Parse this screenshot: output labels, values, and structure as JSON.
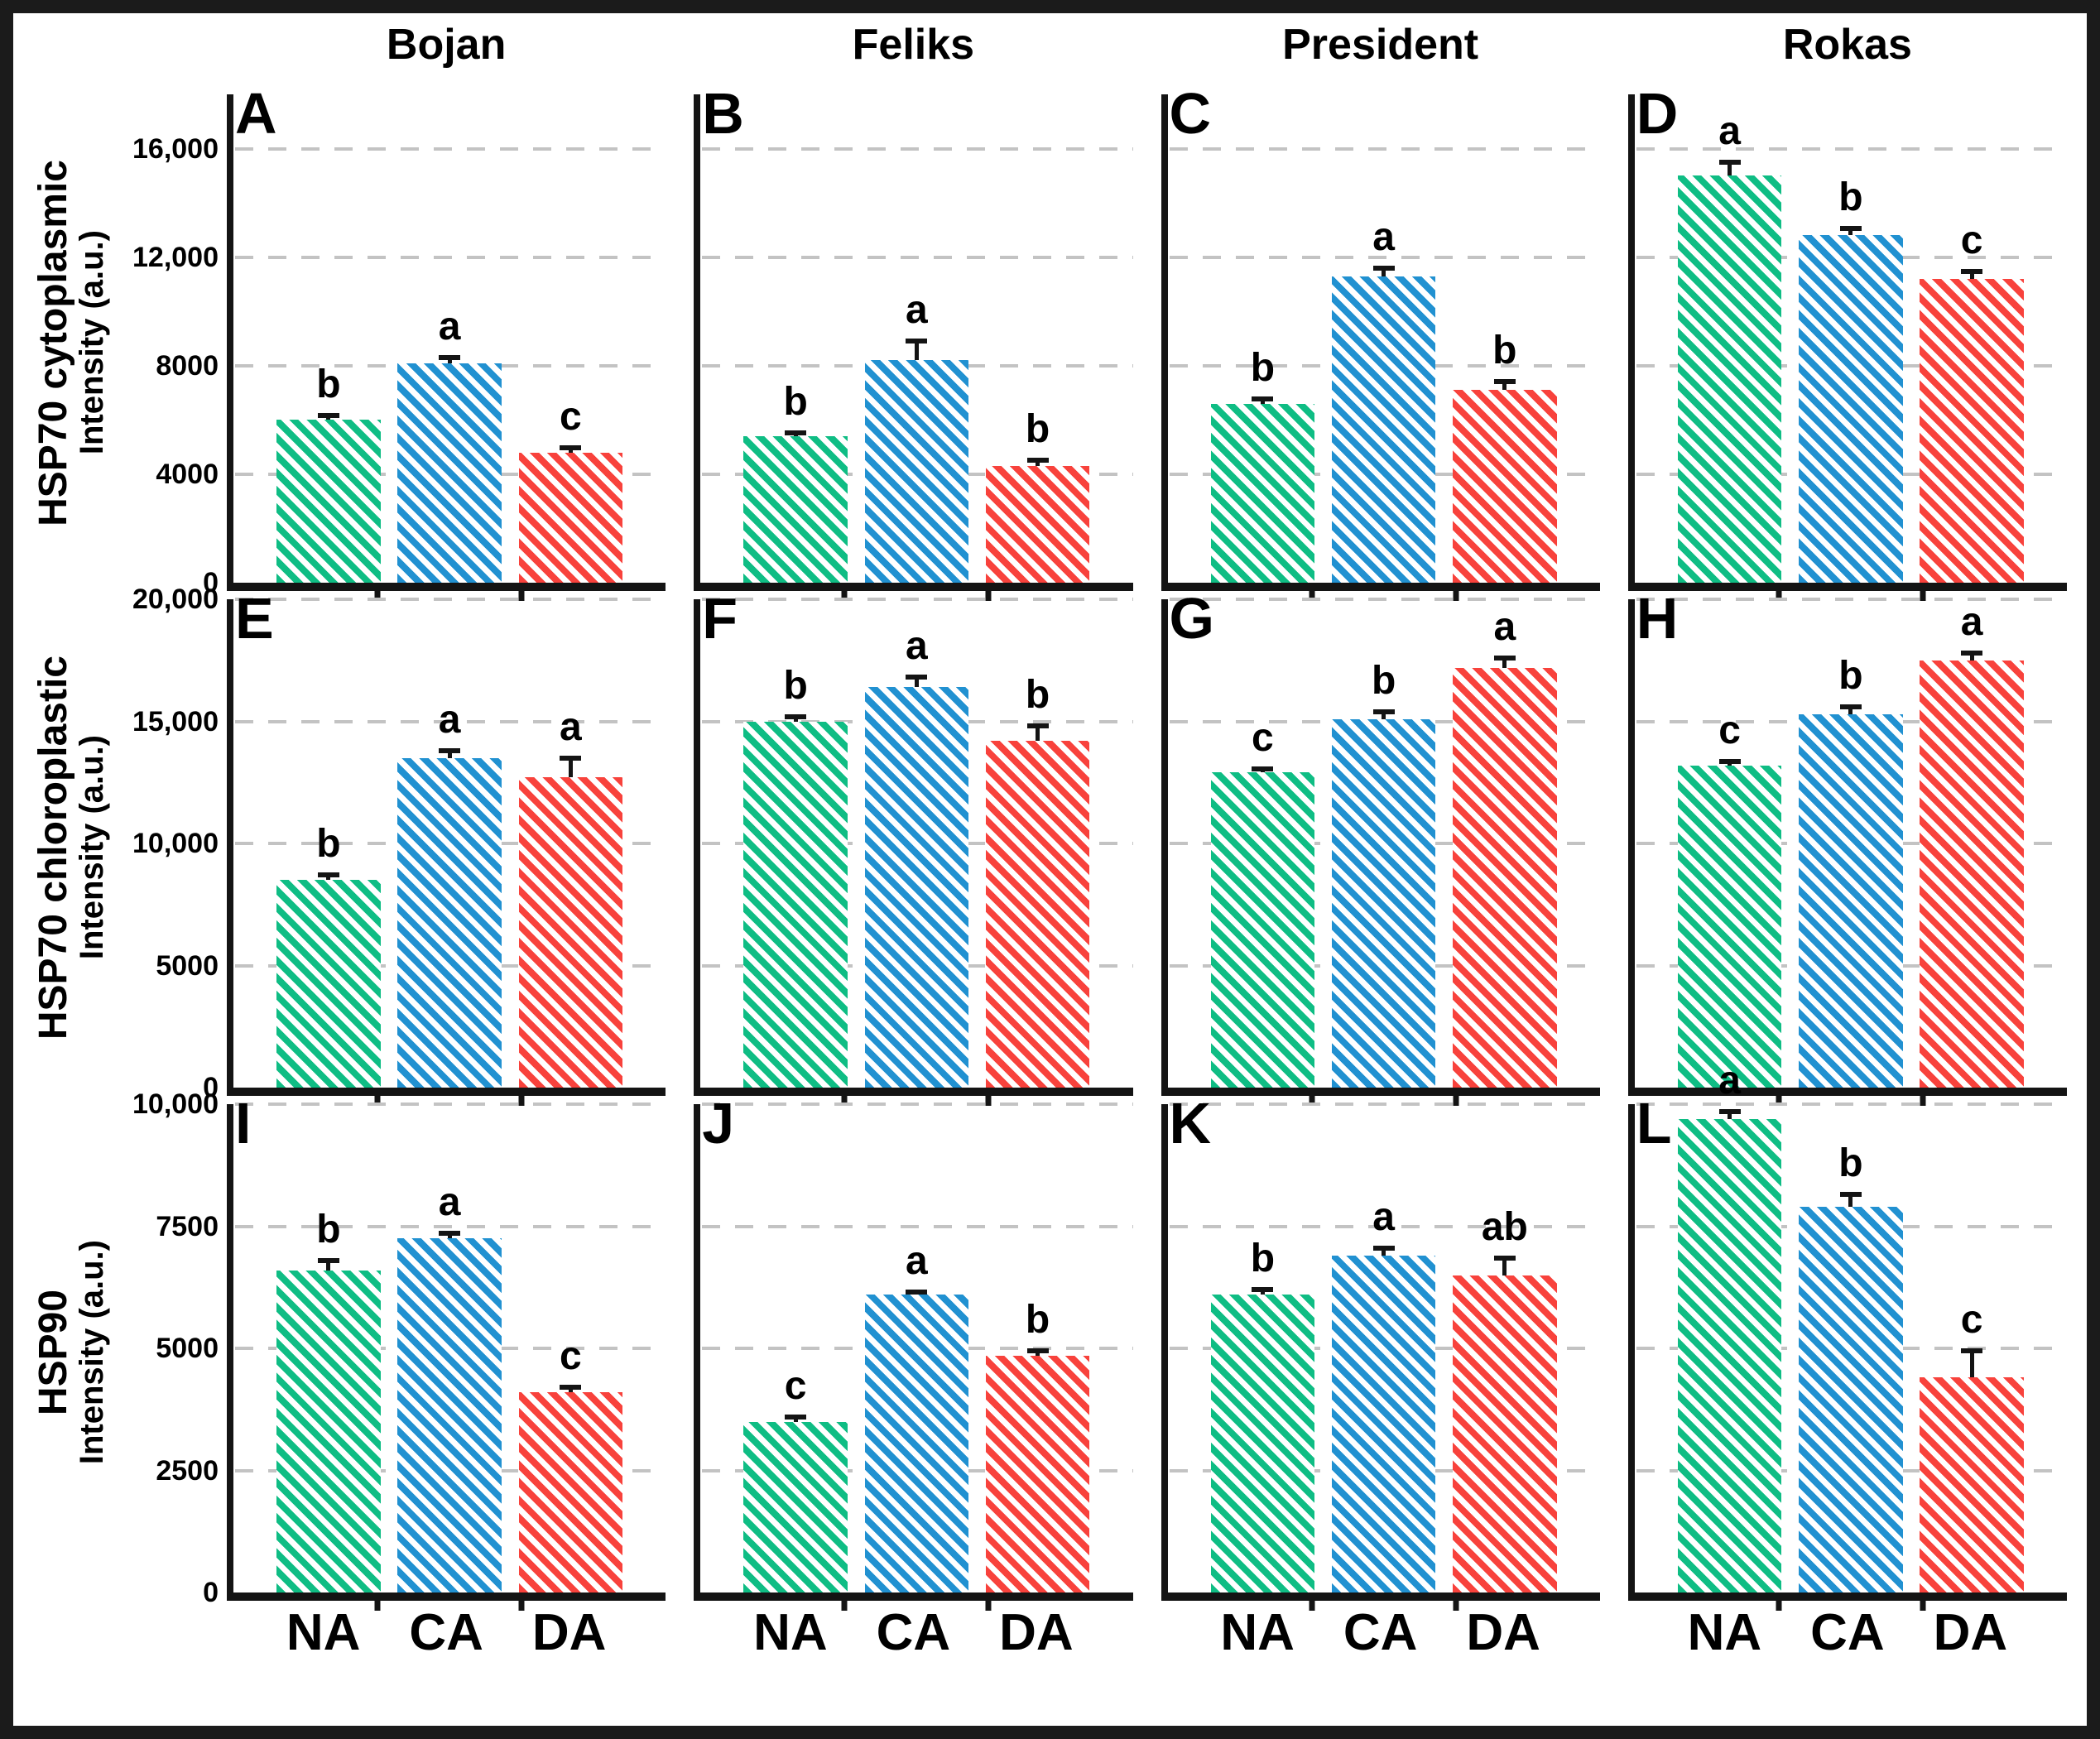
{
  "layout": {
    "columns": [
      "Bojan",
      "Feliks",
      "President",
      "Rokas"
    ],
    "x_categories": [
      "NA",
      "CA",
      "DA"
    ],
    "legend": "none",
    "grid": "dashed-horizontal"
  },
  "colors": {
    "na_green": "#0fbd84",
    "ca_blue": "#2191d1",
    "da_red": "#f8423c",
    "axis": "#141414",
    "gridline": "#c3c3c3",
    "frame": "#1b1b1b",
    "text": "#000000",
    "background": "#ffffff"
  },
  "rows": [
    {
      "measure": "HSP70 cytoplasmic",
      "axis_label": "Intensity (a.u.)",
      "ymax": 18000,
      "ticks": [
        {
          "value": 0,
          "label": "0"
        },
        {
          "value": 4000,
          "label": "4000"
        },
        {
          "value": 8000,
          "label": "8000"
        },
        {
          "value": 12000,
          "label": "12,000"
        },
        {
          "value": 16000,
          "label": "16,000"
        }
      ]
    },
    {
      "measure": "HSP70 chloroplastic",
      "axis_label": "Intensity (a.u.)",
      "ymax": 20000,
      "ticks": [
        {
          "value": 0,
          "label": "0"
        },
        {
          "value": 5000,
          "label": "5000"
        },
        {
          "value": 10000,
          "label": "10,000"
        },
        {
          "value": 15000,
          "label": "15,000"
        },
        {
          "value": 20000,
          "label": "20,000"
        }
      ]
    },
    {
      "measure": "HSP90",
      "axis_label": "Intensity (a.u.)",
      "ymax": 10000,
      "ticks": [
        {
          "value": 0,
          "label": "0"
        },
        {
          "value": 2500,
          "label": "2500"
        },
        {
          "value": 5000,
          "label": "5000"
        },
        {
          "value": 7500,
          "label": "7500"
        },
        {
          "value": 10000,
          "label": "10,000"
        }
      ]
    }
  ],
  "chart_data": [
    {
      "type": "bar",
      "panel": "A",
      "measure": "HSP70 cytoplasmic",
      "cultivar": "Bojan",
      "ylabel": "Intensity (a.u.)",
      "ylim": [
        0,
        18000
      ],
      "categories": [
        "NA",
        "CA",
        "DA"
      ],
      "values": [
        6000,
        8100,
        4800
      ],
      "errors": [
        250,
        300,
        250
      ],
      "sig_letters": [
        "b",
        "a",
        "c"
      ]
    },
    {
      "type": "bar",
      "panel": "B",
      "measure": "HSP70 cytoplasmic",
      "cultivar": "Feliks",
      "ylabel": "Intensity (a.u.)",
      "ylim": [
        0,
        18000
      ],
      "categories": [
        "NA",
        "CA",
        "DA"
      ],
      "values": [
        5400,
        8200,
        4300
      ],
      "errors": [
        200,
        800,
        300
      ],
      "sig_letters": [
        "b",
        "a",
        "b"
      ]
    },
    {
      "type": "bar",
      "panel": "C",
      "measure": "HSP70 cytoplasmic",
      "cultivar": "President",
      "ylabel": "Intensity (a.u.)",
      "ylim": [
        0,
        18000
      ],
      "categories": [
        "NA",
        "CA",
        "DA"
      ],
      "values": [
        6600,
        11300,
        7100
      ],
      "errors": [
        250,
        400,
        400
      ],
      "sig_letters": [
        "b",
        "a",
        "b"
      ]
    },
    {
      "type": "bar",
      "panel": "D",
      "measure": "HSP70 cytoplasmic",
      "cultivar": "Rokas",
      "ylabel": "Intensity (a.u.)",
      "ylim": [
        0,
        18000
      ],
      "categories": [
        "NA",
        "CA",
        "DA"
      ],
      "values": [
        15000,
        12800,
        11200
      ],
      "errors": [
        600,
        350,
        350
      ],
      "sig_letters": [
        "a",
        "b",
        "c"
      ]
    },
    {
      "type": "bar",
      "panel": "E",
      "measure": "HSP70 chloroplastic",
      "cultivar": "Bojan",
      "ylabel": "Intensity (a.u.)",
      "ylim": [
        0,
        20000
      ],
      "categories": [
        "NA",
        "CA",
        "DA"
      ],
      "values": [
        8500,
        13500,
        12700
      ],
      "errors": [
        300,
        400,
        900
      ],
      "sig_letters": [
        "b",
        "a",
        "a"
      ]
    },
    {
      "type": "bar",
      "panel": "F",
      "measure": "HSP70 chloroplastic",
      "cultivar": "Feliks",
      "ylabel": "Intensity (a.u.)",
      "ylim": [
        0,
        20000
      ],
      "categories": [
        "NA",
        "CA",
        "DA"
      ],
      "values": [
        15000,
        16400,
        14200
      ],
      "errors": [
        300,
        500,
        700
      ],
      "sig_letters": [
        "b",
        "a",
        "b"
      ]
    },
    {
      "type": "bar",
      "panel": "G",
      "measure": "HSP70 chloroplastic",
      "cultivar": "President",
      "ylabel": "Intensity (a.u.)",
      "ylim": [
        0,
        20000
      ],
      "categories": [
        "NA",
        "CA",
        "DA"
      ],
      "values": [
        12900,
        15100,
        17200
      ],
      "errors": [
        250,
        400,
        500
      ],
      "sig_letters": [
        "c",
        "b",
        "a"
      ]
    },
    {
      "type": "bar",
      "panel": "H",
      "measure": "HSP70 chloroplastic",
      "cultivar": "Rokas",
      "ylabel": "Intensity (a.u.)",
      "ylim": [
        0,
        20000
      ],
      "categories": [
        "NA",
        "CA",
        "DA"
      ],
      "values": [
        13200,
        15300,
        17500
      ],
      "errors": [
        250,
        400,
        400
      ],
      "sig_letters": [
        "c",
        "b",
        "a"
      ]
    },
    {
      "type": "bar",
      "panel": "I",
      "measure": "HSP90",
      "cultivar": "Bojan",
      "ylabel": "Intensity (a.u.)",
      "ylim": [
        0,
        10000
      ],
      "categories": [
        "NA",
        "CA",
        "DA"
      ],
      "values": [
        6600,
        7250,
        4100
      ],
      "errors": [
        250,
        150,
        150
      ],
      "sig_letters": [
        "b",
        "a",
        "c"
      ]
    },
    {
      "type": "bar",
      "panel": "J",
      "measure": "HSP90",
      "cultivar": "Feliks",
      "ylabel": "Intensity (a.u.)",
      "ylim": [
        0,
        10000
      ],
      "categories": [
        "NA",
        "CA",
        "DA"
      ],
      "values": [
        3500,
        6100,
        4850
      ],
      "errors": [
        150,
        100,
        150
      ],
      "sig_letters": [
        "c",
        "a",
        "b"
      ]
    },
    {
      "type": "bar",
      "panel": "K",
      "measure": "HSP90",
      "cultivar": "President",
      "ylabel": "Intensity (a.u.)",
      "ylim": [
        0,
        10000
      ],
      "categories": [
        "NA",
        "CA",
        "DA"
      ],
      "values": [
        6100,
        6900,
        6500
      ],
      "errors": [
        150,
        200,
        400
      ],
      "sig_letters": [
        "b",
        "a",
        "ab"
      ]
    },
    {
      "type": "bar",
      "panel": "L",
      "measure": "HSP90",
      "cultivar": "Rokas",
      "ylabel": "Intensity (a.u.)",
      "ylim": [
        0,
        10000
      ],
      "categories": [
        "NA",
        "CA",
        "DA"
      ],
      "values": [
        9700,
        7900,
        4400
      ],
      "errors": [
        200,
        300,
        600
      ],
      "sig_letters": [
        "a",
        "b",
        "c"
      ]
    }
  ]
}
